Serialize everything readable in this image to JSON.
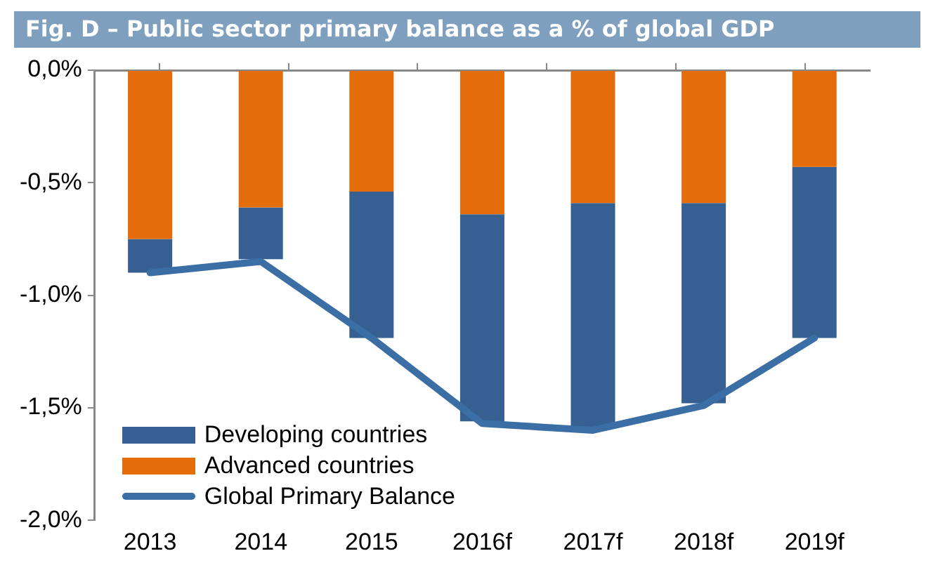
{
  "chart_data": {
    "type": "bar",
    "title": "Fig. D – Public sector primary balance as a % of global GDP",
    "categories": [
      "2013",
      "2014",
      "2015",
      "2016f",
      "2017f",
      "2018f",
      "2019f"
    ],
    "stacked": true,
    "series": [
      {
        "name": "Advanced countries",
        "color": "#e46c0a",
        "values": [
          -0.75,
          -0.61,
          -0.54,
          -0.64,
          -0.59,
          -0.59,
          -0.43
        ]
      },
      {
        "name": "Developing countries",
        "color": "#366092",
        "values": [
          -0.15,
          -0.23,
          -0.65,
          -0.92,
          -1.0,
          -0.89,
          -0.76
        ]
      },
      {
        "name": "Global Primary Balance",
        "type": "line",
        "color": "#3a6ea5",
        "values": [
          -0.9,
          -0.85,
          -1.19,
          -1.57,
          -1.6,
          -1.49,
          -1.19
        ]
      }
    ],
    "ylim": [
      -2,
      0
    ],
    "yticks": [
      {
        "value": 0,
        "label": "0,0%"
      },
      {
        "value": -0.5,
        "label": "-0,5%"
      },
      {
        "value": -1,
        "label": "-1,0%"
      },
      {
        "value": -1.5,
        "label": "-1,5%"
      },
      {
        "value": -2,
        "label": "-2,0%"
      }
    ],
    "grid": false,
    "legend": "bottom left",
    "marker": "none"
  }
}
